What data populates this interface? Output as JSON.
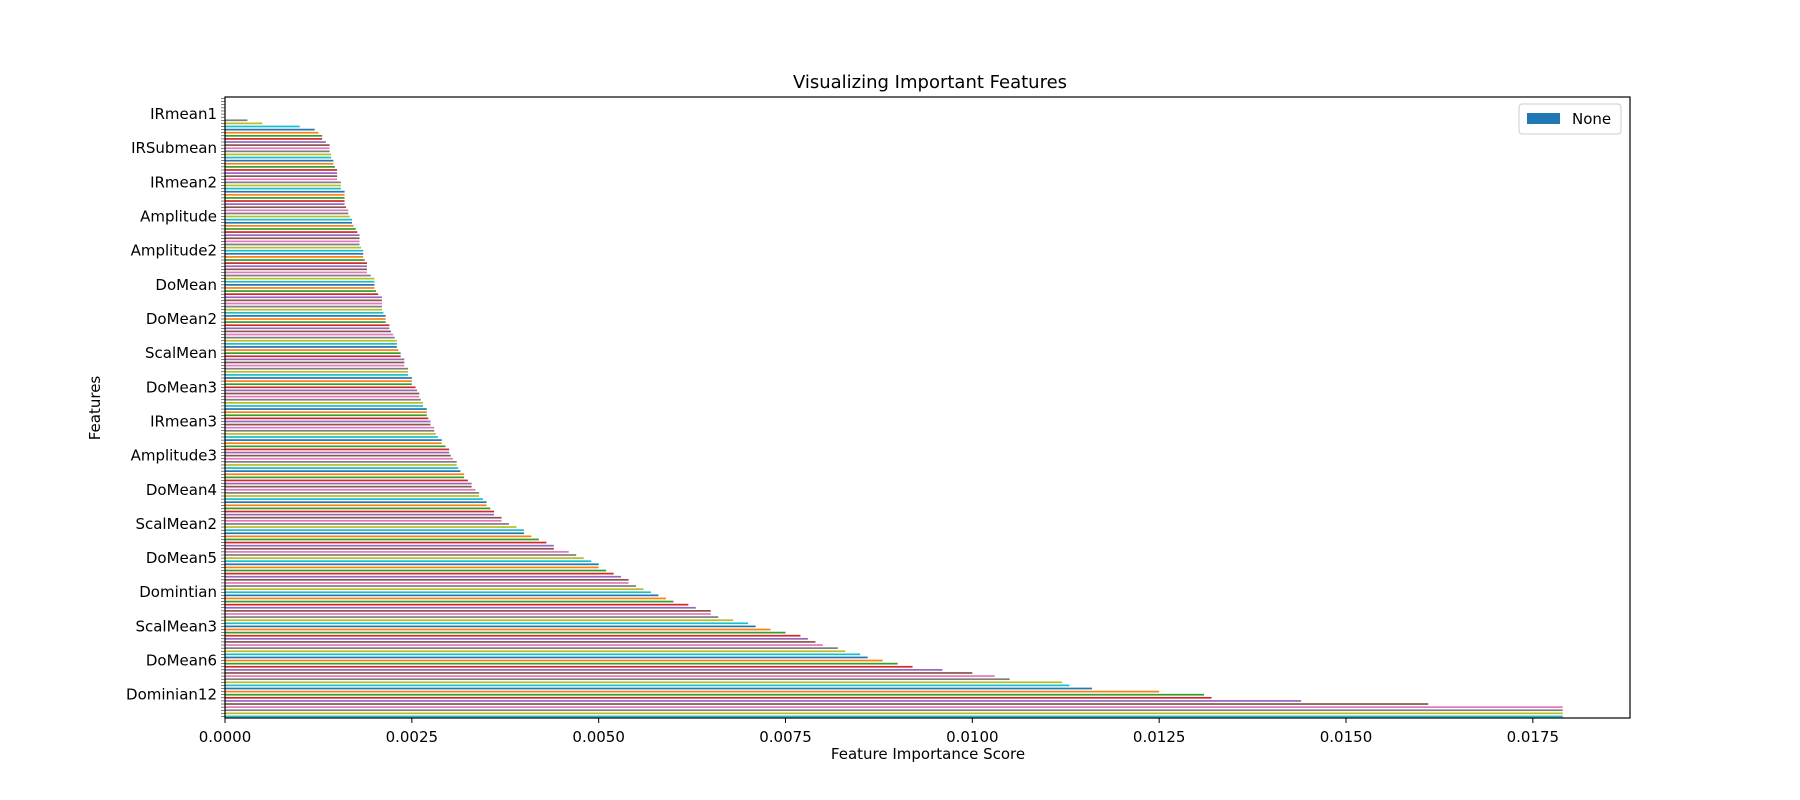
{
  "chart_data": {
    "type": "bar",
    "orientation": "horizontal",
    "title": "Visualizing Important Features",
    "xlabel": "Feature Importance Score",
    "ylabel": "Features",
    "xlim": [
      0,
      0.0188
    ],
    "xticks": [
      "0.0000",
      "0.0025",
      "0.0050",
      "0.0075",
      "0.0100",
      "0.0125",
      "0.0150",
      "0.0175"
    ],
    "xtick_values": [
      0,
      0.0025,
      0.005,
      0.0075,
      0.01,
      0.0125,
      0.015,
      0.0175
    ],
    "legend": {
      "entries": [
        "None"
      ],
      "placement": "top-right"
    },
    "grid": false,
    "bar_count": 200,
    "bar_colors": [
      "#1f77b4",
      "#ff7f0e",
      "#2ca02c",
      "#d62728",
      "#9467bd",
      "#8c564b",
      "#e377c2",
      "#7f7f7f",
      "#bcbd22",
      "#17becf"
    ],
    "values_top_to_bottom": [
      0,
      0,
      0,
      0,
      0,
      0,
      0,
      0.0003,
      0.0005,
      0.001,
      0.0012,
      0.00125,
      0.0013,
      0.0013,
      0.00135,
      0.0014,
      0.0014,
      0.0014,
      0.00142,
      0.00142,
      0.00145,
      0.00145,
      0.00147,
      0.0015,
      0.0015,
      0.0015,
      0.0015,
      0.00155,
      0.00155,
      0.00155,
      0.0016,
      0.0016,
      0.0016,
      0.0016,
      0.0016,
      0.00162,
      0.00165,
      0.00165,
      0.00167,
      0.0017,
      0.0017,
      0.00172,
      0.00175,
      0.00177,
      0.0018,
      0.0018,
      0.0018,
      0.0018,
      0.00182,
      0.00185,
      0.00185,
      0.00185,
      0.00187,
      0.0019,
      0.0019,
      0.0019,
      0.0019,
      0.00195,
      0.002,
      0.002,
      0.002,
      0.002,
      0.00202,
      0.00205,
      0.0021,
      0.0021,
      0.0021,
      0.0021,
      0.0021,
      0.00212,
      0.00215,
      0.00215,
      0.00215,
      0.0022,
      0.0022,
      0.00222,
      0.00225,
      0.00227,
      0.0023,
      0.0023,
      0.0023,
      0.00232,
      0.00235,
      0.00235,
      0.0024,
      0.0024,
      0.0024,
      0.00245,
      0.00245,
      0.00245,
      0.0025,
      0.0025,
      0.0025,
      0.00255,
      0.00257,
      0.0026,
      0.0026,
      0.00262,
      0.00265,
      0.00265,
      0.0027,
      0.0027,
      0.0027,
      0.00272,
      0.00275,
      0.00275,
      0.0028,
      0.0028,
      0.00282,
      0.00285,
      0.0029,
      0.0029,
      0.00295,
      0.003,
      0.003,
      0.00302,
      0.00305,
      0.0031,
      0.0031,
      0.00312,
      0.00315,
      0.0032,
      0.0032,
      0.00325,
      0.0033,
      0.0033,
      0.00335,
      0.0034,
      0.0034,
      0.00345,
      0.0035,
      0.0035,
      0.00355,
      0.0036,
      0.0036,
      0.0037,
      0.0037,
      0.0038,
      0.0039,
      0.004,
      0.004,
      0.0041,
      0.0042,
      0.0043,
      0.0044,
      0.0044,
      0.0046,
      0.0047,
      0.0048,
      0.0049,
      0.005,
      0.005,
      0.0051,
      0.0052,
      0.0053,
      0.0054,
      0.0054,
      0.0055,
      0.0056,
      0.0057,
      0.0058,
      0.0059,
      0.006,
      0.0062,
      0.0063,
      0.0065,
      0.0065,
      0.0066,
      0.0068,
      0.007,
      0.0071,
      0.0073,
      0.0075,
      0.0077,
      0.0078,
      0.0079,
      0.008,
      0.0082,
      0.0083,
      0.0085,
      0.0086,
      0.0088,
      0.009,
      0.0092,
      0.0096,
      0.01,
      0.0103,
      0.0105,
      0.0112,
      0.0113,
      0.0116,
      0.0125,
      0.0131,
      0.0132,
      0.0144,
      0.0161,
      0.0179,
      0.0179,
      0.0179,
      0.0179
    ],
    "visible_feature_labels": [
      "IRmean1",
      "IRSubmean",
      "IRmean2",
      "Amplitude",
      "Amplitude2",
      "DoMean",
      "DoMean2",
      "ScalMean",
      "DoMean3",
      "IRmean3",
      "Amplitude3",
      "DoMean4",
      "ScalMean2",
      "DoMean5",
      "Domintian",
      "ScalMean3",
      "DoMean6",
      "Dominian12"
    ]
  }
}
